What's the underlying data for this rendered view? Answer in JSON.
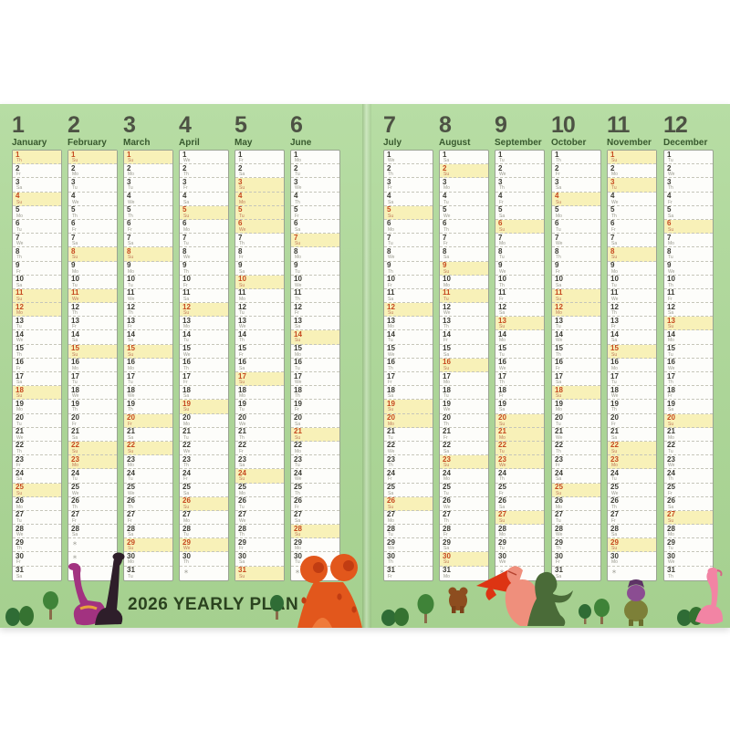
{
  "title": "2026 YEARLY PLAN",
  "year": "2026",
  "dow_labels": [
    "Su",
    "Mo",
    "Tu",
    "We",
    "Th",
    "Fr",
    "Sa"
  ],
  "filler_mark": "＊",
  "colors": {
    "page_green": "#aed69a",
    "highlight_yellow": "#f8f1b8",
    "holiday_red": "#c5481e",
    "day_number": "#3c3c34",
    "dow_gray": "#98988c",
    "header_number": "#4d5244",
    "month_name": "#38592e",
    "title_green": "#2b431f",
    "volcano_orange": "#e2571c",
    "dino_purple": "#a23280",
    "dino_black": "#2e1e2a",
    "dino_pink": "#ef8f7c",
    "dino_green": "#4a6b38",
    "tree_green": "#2f6c35"
  },
  "pages": {
    "left": {
      "months": [
        "January",
        "February",
        "March",
        "April",
        "May",
        "June"
      ]
    },
    "right": {
      "months": [
        "July",
        "August",
        "September",
        "October",
        "November",
        "December"
      ]
    }
  },
  "months": [
    {
      "num": "1",
      "name": "January",
      "days": 31,
      "first_dow": 4,
      "highlighted": [
        1,
        4,
        11,
        12,
        18,
        25
      ]
    },
    {
      "num": "2",
      "name": "February",
      "days": 28,
      "first_dow": 0,
      "highlighted": [
        1,
        8,
        11,
        15,
        22,
        23
      ]
    },
    {
      "num": "3",
      "name": "March",
      "days": 31,
      "first_dow": 0,
      "highlighted": [
        1,
        8,
        15,
        20,
        22,
        29
      ]
    },
    {
      "num": "4",
      "name": "April",
      "days": 30,
      "first_dow": 3,
      "highlighted": [
        5,
        12,
        19,
        26,
        29
      ]
    },
    {
      "num": "5",
      "name": "May",
      "days": 31,
      "first_dow": 5,
      "highlighted": [
        3,
        4,
        5,
        6,
        10,
        17,
        24,
        31
      ]
    },
    {
      "num": "6",
      "name": "June",
      "days": 30,
      "first_dow": 1,
      "highlighted": [
        7,
        14,
        21,
        28
      ]
    },
    {
      "num": "7",
      "name": "July",
      "days": 31,
      "first_dow": 3,
      "highlighted": [
        5,
        12,
        19,
        20,
        26
      ]
    },
    {
      "num": "8",
      "name": "August",
      "days": 31,
      "first_dow": 6,
      "highlighted": [
        2,
        9,
        11,
        16,
        23,
        30
      ]
    },
    {
      "num": "9",
      "name": "September",
      "days": 30,
      "first_dow": 2,
      "highlighted": [
        6,
        13,
        20,
        21,
        22,
        23,
        27
      ]
    },
    {
      "num": "10",
      "name": "October",
      "days": 31,
      "first_dow": 4,
      "highlighted": [
        4,
        11,
        12,
        18,
        25
      ]
    },
    {
      "num": "11",
      "name": "November",
      "days": 30,
      "first_dow": 0,
      "highlighted": [
        1,
        3,
        8,
        15,
        22,
        23,
        29
      ]
    },
    {
      "num": "12",
      "name": "December",
      "days": 31,
      "first_dow": 2,
      "highlighted": [
        6,
        13,
        20,
        27
      ]
    }
  ],
  "decorations": {
    "left": [
      "bush-pair",
      "tree",
      "purple-sauropod",
      "black-sauropod",
      "small-tree",
      "volcano"
    ],
    "right": [
      "bush-pair",
      "tree",
      "brown-creature",
      "pink-tyrannosaur",
      "green-dinosaur",
      "tree-pair",
      "capped-creature",
      "bush-pair",
      "pink-flamingo-dinosaur"
    ]
  }
}
